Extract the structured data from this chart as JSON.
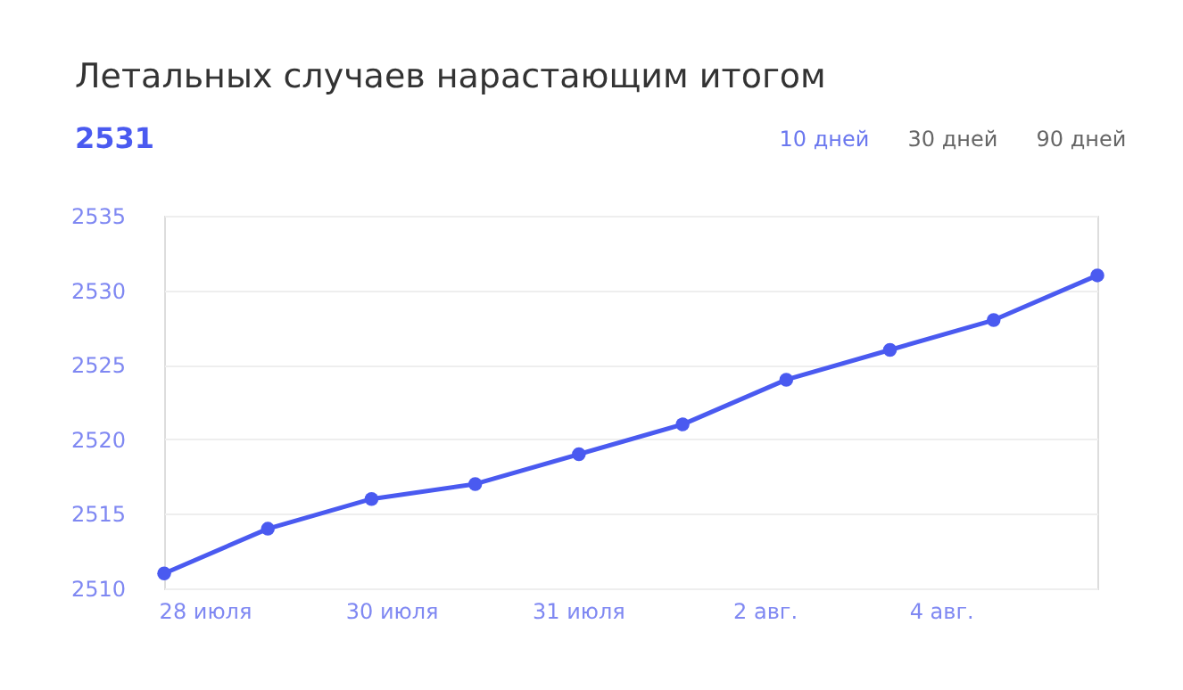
{
  "chart_data": {
    "type": "line",
    "title": "Летальных случаев нарастающим итогом",
    "annotations": [
      "2531",
      "10 дней",
      "30 дней",
      "90 дней",
      "28 июля",
      "30 июля",
      "31 июля",
      "2 авг.",
      "4 авг."
    ],
    "categories": [
      null,
      null,
      null,
      null,
      null,
      null,
      null,
      null,
      null,
      null
    ],
    "series": [
      {
        "color": "#4a5af0",
        "values": [
          2511,
          2514,
          2516,
          2517,
          2519,
          2521,
          2524,
          2526,
          2528,
          2531
        ]
      }
    ],
    "ylim": [
      2510,
      2535
    ],
    "yticks": [
      2510,
      2515,
      2520,
      2525,
      2530,
      2535
    ],
    "grid": "y",
    "marker": "circle",
    "line_style": "solid"
  }
}
